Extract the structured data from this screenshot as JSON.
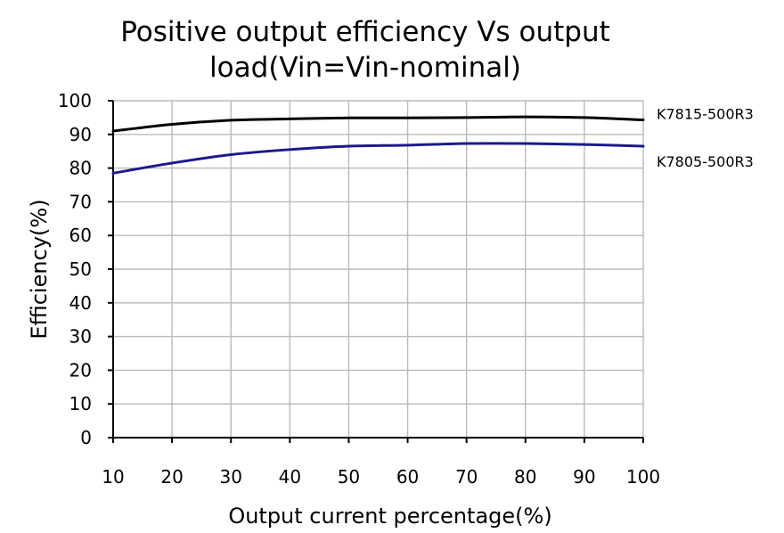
{
  "chart_data": {
    "type": "line",
    "title_lines": [
      "Positive output efficiency Vs output",
      "load(Vin=Vin-nominal)"
    ],
    "xlabel": "Output current percentage(%)",
    "ylabel": "Efficiency(%)",
    "xlim": [
      10,
      100
    ],
    "ylim": [
      0,
      100
    ],
    "x_ticks": [
      10,
      20,
      30,
      40,
      50,
      60,
      70,
      80,
      90,
      100
    ],
    "y_ticks": [
      0,
      10,
      20,
      30,
      40,
      50,
      60,
      70,
      80,
      90,
      100
    ],
    "grid": true,
    "series": [
      {
        "name": "K7815-500R3",
        "color": "#000000",
        "x": [
          10,
          20,
          30,
          40,
          50,
          60,
          70,
          80,
          90,
          100
        ],
        "y": [
          91,
          93,
          94.2,
          94.6,
          94.9,
          94.9,
          95,
          95.2,
          95,
          94.3
        ]
      },
      {
        "name": "K7805-500R3",
        "color": "#1a1a8c",
        "x": [
          10,
          20,
          30,
          40,
          50,
          60,
          70,
          80,
          90,
          100
        ],
        "y": [
          78.5,
          81.5,
          84,
          85.5,
          86.5,
          86.8,
          87.3,
          87.3,
          87,
          86.5
        ]
      }
    ]
  }
}
